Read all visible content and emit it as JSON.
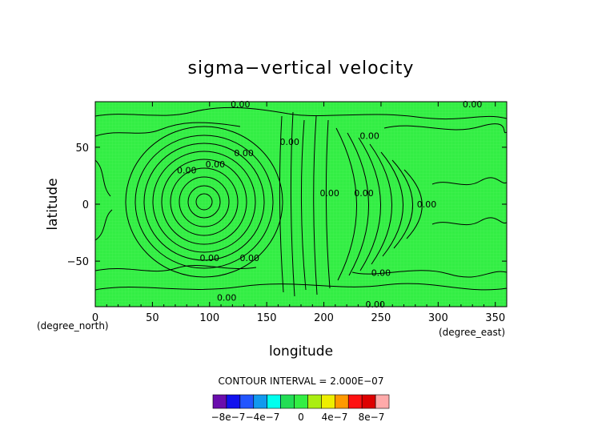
{
  "chart_data": {
    "type": "heatmap",
    "title": "sigma−vertical velocity",
    "xlabel": "longitude",
    "ylabel": "latitude",
    "x_unit": "(degree_east)",
    "y_unit": "(degree_north)",
    "xlim": [
      0,
      360
    ],
    "ylim": [
      -90,
      90
    ],
    "x_ticks": [
      0,
      50,
      100,
      150,
      200,
      250,
      300,
      350
    ],
    "x_tick_labels": [
      "0",
      "50",
      "100",
      "150",
      "200",
      "250",
      "300",
      "350"
    ],
    "y_ticks": [
      50,
      0,
      -50
    ],
    "y_tick_labels": [
      "50",
      "0",
      "−50"
    ],
    "field_color": "#33ee44",
    "contour_labels": [
      {
        "text": "0.00",
        "lon": 127,
        "lat": 88
      },
      {
        "text": "0.00",
        "lon": 330,
        "lat": 88
      },
      {
        "text": "0.00",
        "lon": 240,
        "lat": 60
      },
      {
        "text": "0.00",
        "lon": 170,
        "lat": 55
      },
      {
        "text": "0.00",
        "lon": 130,
        "lat": 45
      },
      {
        "text": "0.00",
        "lon": 105,
        "lat": 35
      },
      {
        "text": "0.00",
        "lon": 80,
        "lat": 30
      },
      {
        "text": "0.00",
        "lon": 290,
        "lat": 0
      },
      {
        "text": "0.00",
        "lon": 235,
        "lat": 10
      },
      {
        "text": "0.00",
        "lon": 205,
        "lat": 10
      },
      {
        "text": "0.00",
        "lon": 100,
        "lat": -47
      },
      {
        "text": "0.00",
        "lon": 135,
        "lat": -47
      },
      {
        "text": "0.00",
        "lon": 250,
        "lat": -60
      },
      {
        "text": "0.00",
        "lon": 115,
        "lat": -82
      },
      {
        "text": "0.00",
        "lon": 245,
        "lat": -88
      }
    ],
    "contour_interval_text": "CONTOUR INTERVAL = 2.000E−07",
    "colorbar": {
      "colors": [
        "#6a0dad",
        "#1111ee",
        "#2255ff",
        "#1199ee",
        "#00ffee",
        "#22dd55",
        "#33ee44",
        "#aaee11",
        "#eeee00",
        "#ff9900",
        "#ff1111",
        "#dd0000",
        "#ffaaaa"
      ],
      "tick_labels": [
        "−8e−7",
        "−4e−7",
        "0",
        "4e−7",
        "8e−7"
      ]
    }
  }
}
